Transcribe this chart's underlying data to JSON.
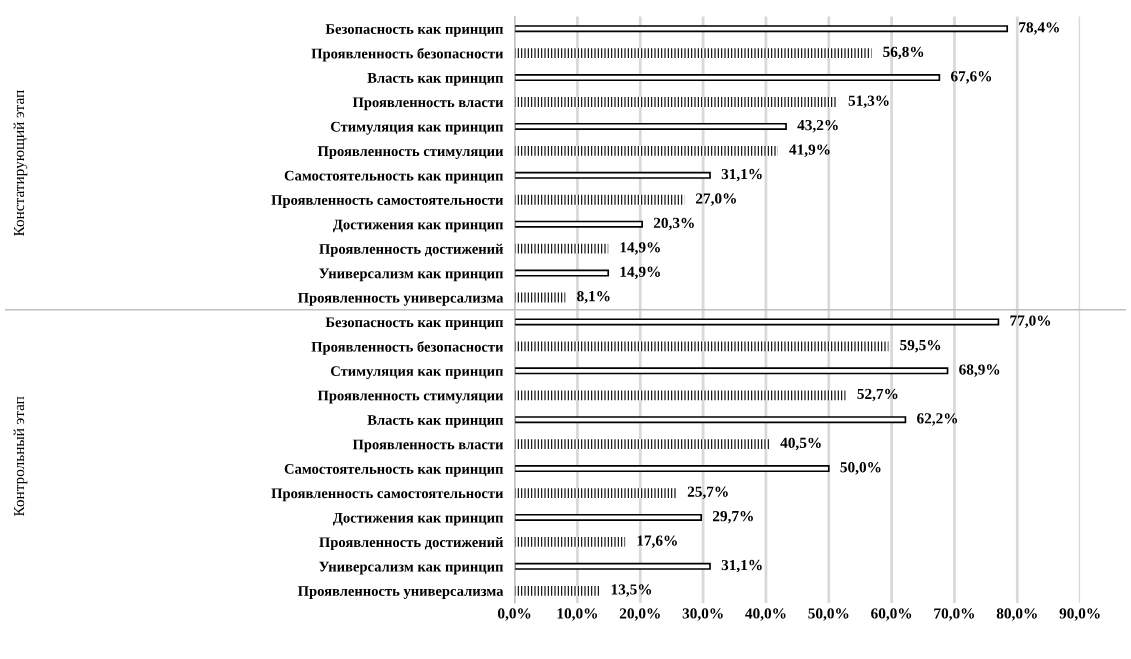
{
  "chart_data": [
    {
      "type": "bar",
      "orientation": "horizontal",
      "ylabel": "Констатирующий этап",
      "categories": [
        "Безопасность как принцип",
        "Проявленность безопасности",
        "Власть как принцип",
        "Проявленность власти",
        "Стимуляция как принцип",
        "Проявленность стимуляции",
        "Самостоятельность как принцип",
        "Проявленность самостоятельности",
        "Достижения как принцип",
        "Проявленность достижений",
        "Универсализм как принцип",
        "Проявленность универсализма"
      ],
      "series": [
        {
          "color": "#000000",
          "values": [
            78.4,
            null,
            67.6,
            null,
            43.2,
            null,
            31.1,
            null,
            20.3,
            null,
            14.9,
            null
          ],
          "value_labels": [
            "78,4%",
            null,
            "67,6%",
            null,
            "43,2%",
            null,
            "31,1%",
            null,
            "20,3%",
            null,
            "14,9%",
            null
          ]
        },
        {
          "color": "#000000",
          "values": [
            null,
            56.8,
            null,
            51.3,
            null,
            41.9,
            null,
            27.0,
            null,
            14.9,
            null,
            8.1
          ],
          "value_labels": [
            null,
            "56,8%",
            null,
            "51,3%",
            null,
            "41,9%",
            null,
            "27,0%",
            null,
            "14,9%",
            null,
            "8,1%"
          ]
        }
      ],
      "xlim": [
        0,
        90
      ],
      "xticks": [
        {
          "value": 0,
          "label": null
        },
        {
          "value": 10,
          "label": null
        },
        {
          "value": 20,
          "label": null
        },
        {
          "value": 30,
          "label": null
        },
        {
          "value": 40,
          "label": null
        },
        {
          "value": 50,
          "label": null
        },
        {
          "value": 60,
          "label": null
        },
        {
          "value": 70,
          "label": null
        },
        {
          "value": 80,
          "label": null
        },
        {
          "value": 90,
          "label": null
        }
      ],
      "grid": "x",
      "tick_labels": "y"
    },
    {
      "type": "bar",
      "orientation": "horizontal",
      "ylabel": "Контрольный этап",
      "categories": [
        "Безопасность как принцип",
        "Проявленность безопасности",
        "Стимуляция как принцип",
        "Проявленность стимуляции",
        "Власть как принцип",
        "Проявленность власти",
        "Самостоятельность как принцип",
        "Проявленность самостоятельности",
        "Достижения как принцип",
        "Проявленность достижений",
        "Универсализм как принцип",
        "Проявленность универсализма"
      ],
      "series": [
        {
          "color": "#000000",
          "values": [
            77.0,
            null,
            68.9,
            null,
            62.2,
            null,
            50.0,
            null,
            29.7,
            null,
            31.1,
            null
          ],
          "value_labels": [
            "77,0%",
            null,
            "68,9%",
            null,
            "62,2%",
            null,
            "50,0%",
            null,
            "29,7%",
            null,
            "31,1%",
            null
          ]
        },
        {
          "color": "#000000",
          "values": [
            null,
            59.5,
            null,
            52.7,
            null,
            40.5,
            null,
            25.7,
            null,
            17.6,
            null,
            13.5
          ],
          "value_labels": [
            null,
            "59,5%",
            null,
            "52,7%",
            null,
            "40,5%",
            null,
            "25,7%",
            null,
            "17,6%",
            null,
            "13,5%"
          ]
        }
      ],
      "xlim": [
        0,
        90
      ],
      "xticks": [
        {
          "value": 0,
          "label": "0,0%"
        },
        {
          "value": 10,
          "label": "10,0%"
        },
        {
          "value": 20,
          "label": "20,0%"
        },
        {
          "value": 30,
          "label": "30,0%"
        },
        {
          "value": 40,
          "label": "40,0%"
        },
        {
          "value": 50,
          "label": "50,0%"
        },
        {
          "value": 60,
          "label": "60,0%"
        },
        {
          "value": 70,
          "label": "70,0%"
        },
        {
          "value": 80,
          "label": "80,0%"
        },
        {
          "value": 90,
          "label": "90,0%"
        }
      ],
      "grid": "x"
    }
  ]
}
